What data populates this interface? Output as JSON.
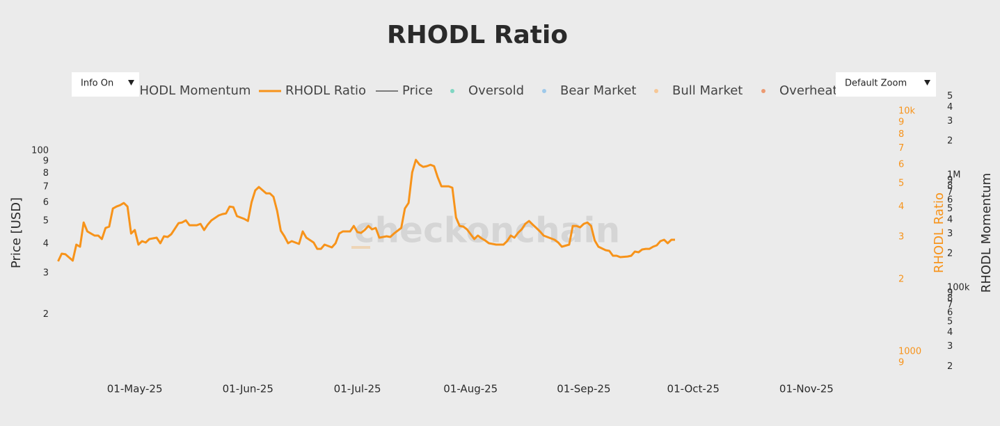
{
  "chart_data": {
    "type": "line",
    "title": "RHODL Ratio",
    "watermark": "checkonchain",
    "controls": {
      "info_button": "Info On",
      "zoom_button": "Default Zoom"
    },
    "log_scale": true,
    "grid": false,
    "ylabel": "Price [USD]",
    "y2label": "RHODL Ratio",
    "y3label": "RHODL Momentum",
    "xlim": [
      "2025-04-08",
      "2025-11-26"
    ],
    "xticks": [
      {
        "value": "2025-05-01",
        "label": "01-May-25"
      },
      {
        "value": "2025-06-01",
        "label": "01-Jun-25"
      },
      {
        "value": "2025-07-01",
        "label": "01-Jul-25"
      },
      {
        "value": "2025-08-01",
        "label": "01-Aug-25"
      },
      {
        "value": "2025-09-01",
        "label": "01-Sep-25"
      },
      {
        "value": "2025-10-01",
        "label": "01-Oct-25"
      },
      {
        "value": "2025-11-01",
        "label": "01-Nov-25"
      }
    ],
    "ylim": [
      10.4,
      169
    ],
    "yticks": [
      {
        "value": 20,
        "label": "2"
      },
      {
        "value": 30,
        "label": "3"
      },
      {
        "value": 40,
        "label": "4"
      },
      {
        "value": 50,
        "label": "5"
      },
      {
        "value": 60,
        "label": "6"
      },
      {
        "value": 70,
        "label": "7"
      },
      {
        "value": 80,
        "label": "8"
      },
      {
        "value": 90,
        "label": "9"
      },
      100
    ],
    "y2lim": [
      756,
      11430
    ],
    "y2ticks": [
      {
        "value": 900,
        "label": "9"
      },
      1000,
      {
        "value": 2000,
        "label": "2"
      },
      {
        "value": 3000,
        "label": "3"
      },
      {
        "value": 4000,
        "label": "4"
      },
      {
        "value": 5000,
        "label": "5"
      },
      {
        "value": 6000,
        "label": "6"
      },
      {
        "value": 7000,
        "label": "7"
      },
      {
        "value": 8000,
        "label": "8"
      },
      {
        "value": 9000,
        "label": "9"
      },
      {
        "value": 10000,
        "label": "10k"
      }
    ],
    "y2color": "#f7931a",
    "y3lim": [
      14900,
      4900000
    ],
    "y3ticks": [
      {
        "value": 20000,
        "label": "2"
      },
      {
        "value": 30000,
        "label": "3"
      },
      {
        "value": 40000,
        "label": "4"
      },
      {
        "value": 50000,
        "label": "5"
      },
      {
        "value": 60000,
        "label": "6"
      },
      {
        "value": 70000,
        "label": "7"
      },
      {
        "value": 80000,
        "label": "8"
      },
      {
        "value": 90000,
        "label": "9"
      },
      {
        "value": 100000,
        "label": "100k"
      },
      {
        "value": 200000,
        "label": "2"
      },
      {
        "value": 300000,
        "label": "3"
      },
      {
        "value": 400000,
        "label": "4"
      },
      {
        "value": 500000,
        "label": "5"
      },
      {
        "value": 600000,
        "label": "6"
      },
      {
        "value": 700000,
        "label": "7"
      },
      {
        "value": 800000,
        "label": "8"
      },
      {
        "value": 900000,
        "label": "9"
      },
      {
        "value": 1000000,
        "label": "1M"
      },
      {
        "value": 2000000,
        "label": "2"
      },
      {
        "value": 3000000,
        "label": "3"
      },
      {
        "value": 4000000,
        "label": "4"
      },
      {
        "value": 5000000,
        "label": "5"
      }
    ],
    "series": [
      {
        "name": "RHODL Momentum",
        "color": "#333333",
        "symbol": "line",
        "axis": "y3"
      },
      {
        "name": "RHODL Ratio",
        "color": "#f7931a",
        "symbol": "line",
        "axis": "y2",
        "x": [
          "2025-04-10",
          "2025-04-11",
          "2025-04-12",
          "2025-04-14",
          "2025-04-15",
          "2025-04-16",
          "2025-04-17",
          "2025-04-18",
          "2025-04-20",
          "2025-04-21",
          "2025-04-22",
          "2025-04-23",
          "2025-04-24",
          "2025-04-25",
          "2025-04-26",
          "2025-04-27",
          "2025-04-28",
          "2025-04-29",
          "2025-04-30",
          "2025-05-01",
          "2025-05-02",
          "2025-05-03",
          "2025-05-04",
          "2025-05-05",
          "2025-05-07",
          "2025-05-08",
          "2025-05-09",
          "2025-05-10",
          "2025-05-11",
          "2025-05-13",
          "2025-05-14",
          "2025-05-15",
          "2025-05-16",
          "2025-05-18",
          "2025-05-19",
          "2025-05-20",
          "2025-05-21",
          "2025-05-22",
          "2025-05-24",
          "2025-05-25",
          "2025-05-26",
          "2025-05-27",
          "2025-05-28",
          "2025-05-29",
          "2025-05-31",
          "2025-06-01",
          "2025-06-02",
          "2025-06-03",
          "2025-06-04",
          "2025-06-06",
          "2025-06-07",
          "2025-06-08",
          "2025-06-09",
          "2025-06-10",
          "2025-06-11",
          "2025-06-12",
          "2025-06-13",
          "2025-06-15",
          "2025-06-16",
          "2025-06-17",
          "2025-06-19",
          "2025-06-20",
          "2025-06-21",
          "2025-06-22",
          "2025-06-23",
          "2025-06-24",
          "2025-06-25",
          "2025-06-26",
          "2025-06-27",
          "2025-06-29",
          "2025-06-30",
          "2025-07-01",
          "2025-07-02",
          "2025-07-03",
          "2025-07-04",
          "2025-07-05",
          "2025-07-06",
          "2025-07-07",
          "2025-07-09",
          "2025-07-10",
          "2025-07-11",
          "2025-07-13",
          "2025-07-14",
          "2025-07-15",
          "2025-07-16",
          "2025-07-17",
          "2025-07-18",
          "2025-07-19",
          "2025-07-20",
          "2025-07-21",
          "2025-07-22",
          "2025-07-23",
          "2025-07-24",
          "2025-07-26",
          "2025-07-27",
          "2025-07-28",
          "2025-07-29",
          "2025-07-30",
          "2025-07-31",
          "2025-08-01",
          "2025-08-02",
          "2025-08-03",
          "2025-08-04",
          "2025-08-05",
          "2025-08-06",
          "2025-08-08",
          "2025-08-10",
          "2025-08-11",
          "2025-08-12",
          "2025-08-13",
          "2025-08-14",
          "2025-08-15",
          "2025-08-16",
          "2025-08-17",
          "2025-08-18",
          "2025-08-19",
          "2025-08-20",
          "2025-08-21",
          "2025-08-22",
          "2025-08-24",
          "2025-08-25",
          "2025-08-26",
          "2025-08-28",
          "2025-08-29",
          "2025-08-30",
          "2025-08-31",
          "2025-09-01",
          "2025-09-02",
          "2025-09-03",
          "2025-09-04",
          "2025-09-05",
          "2025-09-07",
          "2025-09-08",
          "2025-09-09",
          "2025-09-10",
          "2025-09-11",
          "2025-09-13",
          "2025-09-14",
          "2025-09-15",
          "2025-09-16",
          "2025-09-17",
          "2025-09-18",
          "2025-09-19",
          "2025-09-20",
          "2025-09-21",
          "2025-09-22",
          "2025-09-23",
          "2025-09-24",
          "2025-09-25",
          "2025-09-26"
        ],
        "values": [
          2375,
          2556,
          2540,
          2391,
          2788,
          2732,
          3447,
          3162,
          3039,
          3039,
          2940,
          3269,
          3312,
          3936,
          4015,
          4068,
          4154,
          4015,
          3099,
          3205,
          2788,
          2882,
          2844,
          2940,
          2979,
          2825,
          3019,
          2999,
          3079,
          3424,
          3447,
          3515,
          3356,
          3356,
          3401,
          3205,
          3378,
          3515,
          3685,
          3734,
          3758,
          4015,
          3989,
          3661,
          3565,
          3494,
          4182,
          4683,
          4841,
          4556,
          4556,
          4407,
          3858,
          3183,
          3019,
          2825,
          2882,
          2806,
          3162,
          2979,
          2844,
          2677,
          2677,
          2788,
          2751,
          2714,
          2825,
          3099,
          3162,
          3162,
          3334,
          3141,
          3120,
          3205,
          3334,
          3226,
          3269,
          2979,
          3019,
          2999,
          3099,
          3269,
          3936,
          4154,
          5566,
          6280,
          6000,
          5872,
          5911,
          5990,
          5911,
          5314,
          4873,
          4873,
          4809,
          3613,
          3334,
          3312,
          3226,
          3079,
          2940,
          3039,
          2960,
          2901,
          2825,
          2788,
          2788,
          2882,
          3039,
          2979,
          3120,
          3226,
          3401,
          3494,
          3378,
          3269,
          3162,
          3039,
          2999,
          2920,
          2844,
          2732,
          2788,
          3334,
          3334,
          3290,
          3401,
          3447,
          3334,
          2901,
          2732,
          2642,
          2625,
          2505,
          2505,
          2472,
          2488,
          2505,
          2608,
          2591,
          2660,
          2677,
          2677,
          2732,
          2769,
          2882,
          2920,
          2825,
          2920,
          2920
        ]
      },
      {
        "name": "Price",
        "color": "#555555",
        "symbol": "line"
      },
      {
        "name": "Oversold",
        "color": "#7fd6c2",
        "symbol": "dot"
      },
      {
        "name": "Bear Market",
        "color": "#9ec9ea",
        "symbol": "dot"
      },
      {
        "name": "Bull Market",
        "color": "#f6c796",
        "symbol": "dot"
      },
      {
        "name": "Overheated",
        "color": "#ec9a72",
        "symbol": "dot"
      }
    ]
  }
}
